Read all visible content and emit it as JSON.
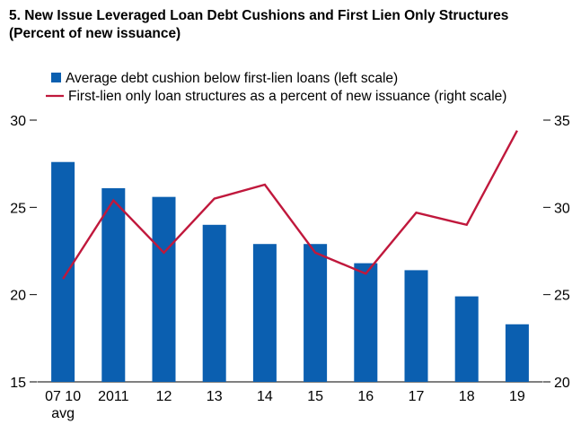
{
  "chart_data": {
    "type": "bar",
    "title": "5. New Issue Leveraged Loan Debt Cushions and First Lien Only Structures",
    "subtitle": "(Percent of new issuance)",
    "categories": [
      "07 10 avg",
      "2011",
      "12",
      "13",
      "14",
      "15",
      "16",
      "17",
      "18",
      "19"
    ],
    "category_labels": [
      [
        "07 10",
        "avg"
      ],
      [
        "2011"
      ],
      [
        "12"
      ],
      [
        "13"
      ],
      [
        "14"
      ],
      [
        "15"
      ],
      [
        "16"
      ],
      [
        "17"
      ],
      [
        "18"
      ],
      [
        "19"
      ]
    ],
    "series": [
      {
        "name": "Average debt cushion below first-lien loans (left scale)",
        "type": "bar",
        "axis": "left",
        "color": "#0b5fb0",
        "values": [
          27.6,
          26.1,
          25.6,
          24.0,
          22.9,
          22.9,
          21.8,
          21.4,
          19.9,
          18.3
        ]
      },
      {
        "name": "First-lien only loan structures as a percent of new issuance (right scale)",
        "type": "line",
        "axis": "right",
        "color": "#c0183c",
        "values": [
          25.9,
          30.4,
          27.4,
          30.5,
          31.3,
          27.4,
          26.2,
          29.7,
          29.0,
          34.4
        ]
      }
    ],
    "left_axis": {
      "ylim": [
        15,
        30
      ],
      "ticks": [
        "15",
        "20",
        "25",
        "30"
      ]
    },
    "right_axis": {
      "ylim": [
        20,
        35
      ],
      "ticks": [
        "20",
        "25",
        "30",
        "35"
      ]
    },
    "legend_position": "top",
    "grid": false
  }
}
